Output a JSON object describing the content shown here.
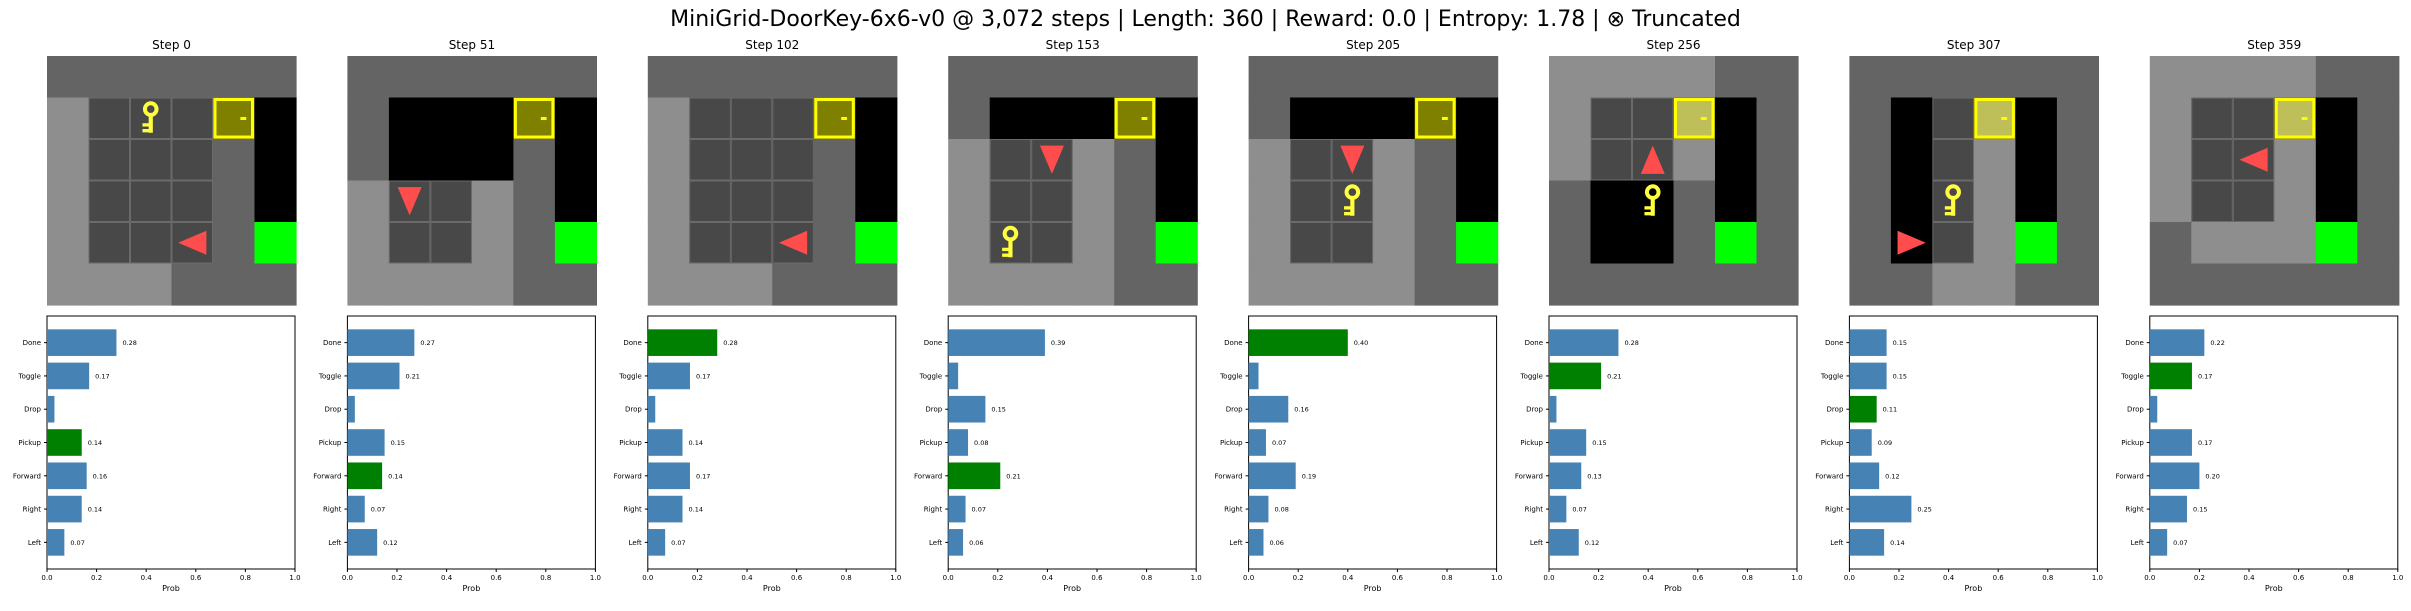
{
  "title": "MiniGrid-DoorKey-6x6-v0 @ 3,072 steps | Length: 360 | Reward: 0.0 | Entropy: 1.78 | ⊗ Truncated",
  "colors": {
    "bar": "#4682b4",
    "selected_bar": "#008000",
    "floor_unseen": "#646464",
    "floor_visible": "#8e8e8e",
    "tile_dark": "#484848",
    "wall_black": "#000000",
    "door": "#7f7f00",
    "door_border": "#ffff00",
    "key": "#ffff40",
    "agent": "#ff4d4d",
    "goal": "#00ff00"
  },
  "chart_data": [
    {
      "type": "bar",
      "orientation": "horizontal",
      "title": "Step 0",
      "categories": [
        "Done",
        "Toggle",
        "Drop",
        "Pickup",
        "Forward",
        "Right",
        "Left"
      ],
      "values": [
        0.28,
        0.17,
        0.03,
        0.14,
        0.16,
        0.14,
        0.07
      ],
      "labels": [
        "0.28",
        "0.17",
        "",
        "0.14",
        "0.16",
        "0.14",
        "0.07"
      ],
      "selected": "Pickup",
      "xlabel": "Prob",
      "xlim": [
        0,
        1
      ],
      "xticks": [
        "0.0",
        "0.2",
        "0.4",
        "0.6",
        "0.8",
        "1.0"
      ]
    },
    {
      "type": "bar",
      "orientation": "horizontal",
      "title": "Step 51",
      "categories": [
        "Done",
        "Toggle",
        "Drop",
        "Pickup",
        "Forward",
        "Right",
        "Left"
      ],
      "values": [
        0.27,
        0.21,
        0.03,
        0.15,
        0.14,
        0.07,
        0.12
      ],
      "labels": [
        "0.27",
        "0.21",
        "",
        "0.15",
        "0.14",
        "0.07",
        "0.12"
      ],
      "selected": "Forward",
      "xlabel": "Prob",
      "xlim": [
        0,
        1
      ],
      "xticks": [
        "0.0",
        "0.2",
        "0.4",
        "0.6",
        "0.8",
        "1.0"
      ]
    },
    {
      "type": "bar",
      "orientation": "horizontal",
      "title": "Step 102",
      "categories": [
        "Done",
        "Toggle",
        "Drop",
        "Pickup",
        "Forward",
        "Right",
        "Left"
      ],
      "values": [
        0.28,
        0.17,
        0.03,
        0.14,
        0.17,
        0.14,
        0.07
      ],
      "labels": [
        "0.28",
        "0.17",
        "",
        "0.14",
        "0.17",
        "0.14",
        "0.07"
      ],
      "selected": "Done",
      "xlabel": "Prob",
      "xlim": [
        0,
        1
      ],
      "xticks": [
        "0.0",
        "0.2",
        "0.4",
        "0.6",
        "0.8",
        "1.0"
      ]
    },
    {
      "type": "bar",
      "orientation": "horizontal",
      "title": "Step 153",
      "categories": [
        "Done",
        "Toggle",
        "Drop",
        "Pickup",
        "Forward",
        "Right",
        "Left"
      ],
      "values": [
        0.39,
        0.04,
        0.15,
        0.08,
        0.21,
        0.07,
        0.06
      ],
      "labels": [
        "0.39",
        "",
        "0.15",
        "0.08",
        "0.21",
        "0.07",
        "0.06"
      ],
      "selected": "Forward",
      "xlabel": "Prob",
      "xlim": [
        0,
        1
      ],
      "xticks": [
        "0.0",
        "0.2",
        "0.4",
        "0.6",
        "0.8",
        "1.0"
      ]
    },
    {
      "type": "bar",
      "orientation": "horizontal",
      "title": "Step 205",
      "categories": [
        "Done",
        "Toggle",
        "Drop",
        "Pickup",
        "Forward",
        "Right",
        "Left"
      ],
      "values": [
        0.4,
        0.04,
        0.16,
        0.07,
        0.19,
        0.08,
        0.06
      ],
      "labels": [
        "0.40",
        "",
        "0.16",
        "0.07",
        "0.19",
        "0.08",
        "0.06"
      ],
      "selected": "Done",
      "xlabel": "Prob",
      "xlim": [
        0,
        1
      ],
      "xticks": [
        "0.0",
        "0.2",
        "0.4",
        "0.6",
        "0.8",
        "1.0"
      ]
    },
    {
      "type": "bar",
      "orientation": "horizontal",
      "title": "Step 256",
      "categories": [
        "Done",
        "Toggle",
        "Drop",
        "Pickup",
        "Forward",
        "Right",
        "Left"
      ],
      "values": [
        0.28,
        0.21,
        0.03,
        0.15,
        0.13,
        0.07,
        0.12
      ],
      "labels": [
        "0.28",
        "0.21",
        "",
        "0.15",
        "0.13",
        "0.07",
        "0.12"
      ],
      "selected": "Toggle",
      "xlabel": "Prob",
      "xlim": [
        0,
        1
      ],
      "xticks": [
        "0.0",
        "0.2",
        "0.4",
        "0.6",
        "0.8",
        "1.0"
      ]
    },
    {
      "type": "bar",
      "orientation": "horizontal",
      "title": "Step 307",
      "categories": [
        "Done",
        "Toggle",
        "Drop",
        "Pickup",
        "Forward",
        "Right",
        "Left"
      ],
      "values": [
        0.15,
        0.15,
        0.11,
        0.09,
        0.12,
        0.25,
        0.14
      ],
      "labels": [
        "0.15",
        "0.15",
        "0.11",
        "0.09",
        "0.12",
        "0.25",
        "0.14"
      ],
      "selected": "Drop",
      "xlabel": "Prob",
      "xlim": [
        0,
        1
      ],
      "xticks": [
        "0.0",
        "0.2",
        "0.4",
        "0.6",
        "0.8",
        "1.0"
      ]
    },
    {
      "type": "bar",
      "orientation": "horizontal",
      "title": "Step 359",
      "categories": [
        "Done",
        "Toggle",
        "Drop",
        "Pickup",
        "Forward",
        "Right",
        "Left"
      ],
      "values": [
        0.22,
        0.17,
        0.03,
        0.17,
        0.2,
        0.15,
        0.07
      ],
      "labels": [
        "0.22",
        "0.17",
        "",
        "0.17",
        "0.20",
        "0.15",
        "0.07"
      ],
      "selected": "Toggle",
      "xlabel": "Prob",
      "xlim": [
        0,
        1
      ],
      "xticks": [
        "0.0",
        "0.2",
        "0.4",
        "0.6",
        "0.8",
        "1.0"
      ]
    }
  ],
  "frames": [
    {
      "step": "Step 0",
      "grid": [
        [
          "U",
          "U",
          "U",
          "U",
          "U",
          "U"
        ],
        [
          "V",
          "T",
          "T",
          "T",
          "D",
          "B"
        ],
        [
          "V",
          "T",
          "T",
          "T",
          "U",
          "B"
        ],
        [
          "V",
          "T",
          "T",
          "T",
          "U",
          "B"
        ],
        [
          "V",
          "T",
          "T",
          "T",
          "U",
          "G"
        ],
        [
          "V",
          "V",
          "V",
          "U",
          "U",
          "U"
        ]
      ],
      "key": [
        1,
        2
      ],
      "agent": {
        "pos": [
          4,
          3
        ],
        "dir": "left"
      }
    },
    {
      "step": "Step 51",
      "grid": [
        [
          "U",
          "U",
          "U",
          "U",
          "U",
          "U"
        ],
        [
          "U",
          "B",
          "B",
          "B",
          "D",
          "B"
        ],
        [
          "U",
          "B",
          "B",
          "B",
          "U",
          "B"
        ],
        [
          "V",
          "T",
          "T",
          "V",
          "U",
          "B"
        ],
        [
          "V",
          "T",
          "T",
          "V",
          "U",
          "G"
        ],
        [
          "V",
          "V",
          "V",
          "V",
          "U",
          "U"
        ]
      ],
      "key": null,
      "agent": {
        "pos": [
          3,
          1
        ],
        "dir": "down"
      }
    },
    {
      "step": "Step 102",
      "grid": [
        [
          "U",
          "U",
          "U",
          "U",
          "U",
          "U"
        ],
        [
          "V",
          "T",
          "T",
          "T",
          "D",
          "B"
        ],
        [
          "V",
          "T",
          "T",
          "T",
          "U",
          "B"
        ],
        [
          "V",
          "T",
          "T",
          "T",
          "U",
          "B"
        ],
        [
          "V",
          "T",
          "T",
          "T",
          "U",
          "G"
        ],
        [
          "V",
          "V",
          "V",
          "U",
          "U",
          "U"
        ]
      ],
      "key": null,
      "agent": {
        "pos": [
          4,
          3
        ],
        "dir": "left"
      }
    },
    {
      "step": "Step 153",
      "grid": [
        [
          "U",
          "U",
          "U",
          "U",
          "U",
          "U"
        ],
        [
          "U",
          "B",
          "B",
          "B",
          "D",
          "B"
        ],
        [
          "V",
          "T",
          "T",
          "V",
          "U",
          "B"
        ],
        [
          "V",
          "T",
          "T",
          "V",
          "U",
          "B"
        ],
        [
          "V",
          "T",
          "T",
          "V",
          "U",
          "G"
        ],
        [
          "V",
          "V",
          "V",
          "V",
          "U",
          "U"
        ]
      ],
      "key": [
        4,
        1
      ],
      "agent": {
        "pos": [
          2,
          2
        ],
        "dir": "down"
      }
    },
    {
      "step": "Step 205",
      "grid": [
        [
          "U",
          "U",
          "U",
          "U",
          "U",
          "U"
        ],
        [
          "U",
          "B",
          "B",
          "B",
          "D",
          "B"
        ],
        [
          "V",
          "T",
          "T",
          "V",
          "U",
          "B"
        ],
        [
          "V",
          "T",
          "T",
          "V",
          "U",
          "B"
        ],
        [
          "V",
          "T",
          "T",
          "V",
          "U",
          "G"
        ],
        [
          "V",
          "V",
          "V",
          "V",
          "U",
          "U"
        ]
      ],
      "key": [
        3,
        2
      ],
      "agent": {
        "pos": [
          2,
          2
        ],
        "dir": "down"
      }
    },
    {
      "step": "Step 256",
      "grid": [
        [
          "V",
          "V",
          "V",
          "V",
          "U",
          "U"
        ],
        [
          "V",
          "T",
          "T",
          "D",
          "B",
          "U"
        ],
        [
          "V",
          "T",
          "T",
          "V",
          "B",
          "U"
        ],
        [
          "U",
          "B",
          "B",
          "U",
          "B",
          "U"
        ],
        [
          "U",
          "B",
          "B",
          "U",
          "G",
          "U"
        ],
        [
          "U",
          "U",
          "U",
          "U",
          "U",
          "U"
        ]
      ],
      "key": [
        3,
        2
      ],
      "agent": {
        "pos": [
          2,
          2
        ],
        "dir": "up"
      }
    },
    {
      "step": "Step 307",
      "grid": [
        [
          "U",
          "U",
          "U",
          "U",
          "U",
          "U"
        ],
        [
          "U",
          "B",
          "T",
          "D",
          "B",
          "U"
        ],
        [
          "U",
          "B",
          "T",
          "V",
          "B",
          "U"
        ],
        [
          "U",
          "B",
          "T",
          "V",
          "B",
          "U"
        ],
        [
          "U",
          "B",
          "T",
          "V",
          "G",
          "U"
        ],
        [
          "U",
          "U",
          "V",
          "V",
          "U",
          "U"
        ]
      ],
      "key": [
        3,
        2
      ],
      "agent": {
        "pos": [
          4,
          1
        ],
        "dir": "right"
      }
    },
    {
      "step": "Step 359",
      "grid": [
        [
          "V",
          "V",
          "V",
          "V",
          "U",
          "U"
        ],
        [
          "V",
          "T",
          "T",
          "D",
          "B",
          "U"
        ],
        [
          "V",
          "T",
          "T",
          "V",
          "B",
          "U"
        ],
        [
          "V",
          "T",
          "T",
          "V",
          "B",
          "U"
        ],
        [
          "U",
          "V",
          "V",
          "V",
          "G",
          "U"
        ],
        [
          "U",
          "U",
          "U",
          "U",
          "U",
          "U"
        ]
      ],
      "key": null,
      "agent": {
        "pos": [
          2,
          2
        ],
        "dir": "left"
      }
    }
  ]
}
